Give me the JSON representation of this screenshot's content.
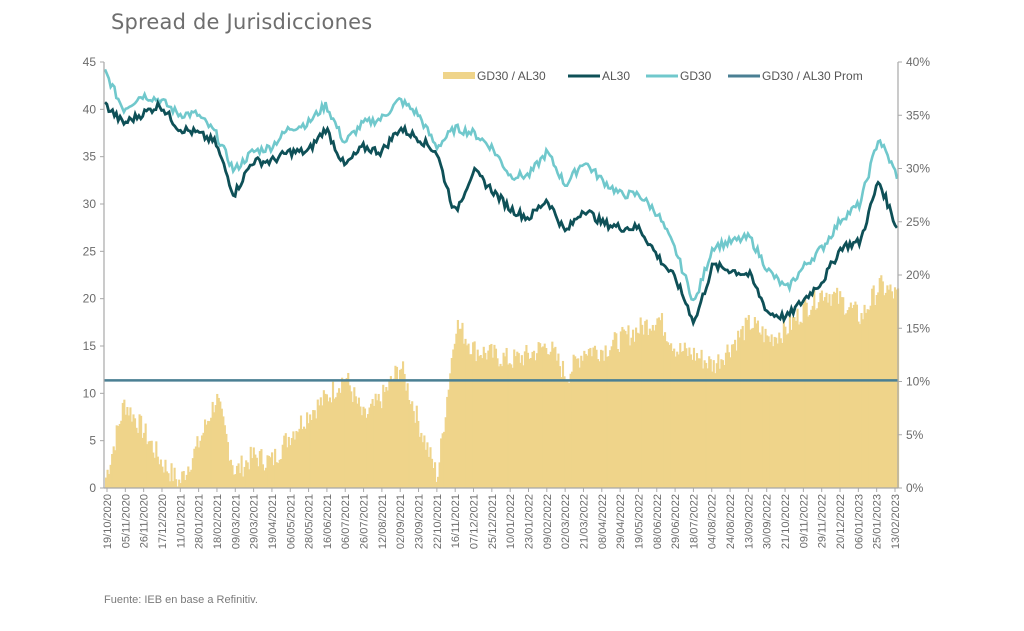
{
  "title": "Spread de Jurisdicciones",
  "source": "Fuente: IEB en base a Refinitiv.",
  "colors": {
    "gd30_al30": "#efd48a",
    "al30": "#0e5057",
    "gd30": "#70c8cc",
    "prom": "#4a7f93",
    "axis": "#a8a8a8"
  },
  "chart_data": {
    "type": "line+bar",
    "title": "Spread de Jurisdicciones",
    "xlabel": "",
    "ylabel_left": "",
    "ylabel_right": "",
    "ylim_left": [
      0,
      45
    ],
    "ylim_right": [
      0,
      40
    ],
    "left_ticks": [
      "0",
      "5",
      "10",
      "15",
      "20",
      "25",
      "30",
      "35",
      "40",
      "45"
    ],
    "right_ticks": [
      "0%",
      "5%",
      "10%",
      "15%",
      "20%",
      "25%",
      "30%",
      "35%",
      "40%"
    ],
    "legend_position": "top-right",
    "legend": [
      "GD30 / AL30",
      "AL30",
      "GD30",
      "GD30 / AL30 Prom"
    ],
    "x": [
      "19/10/2020",
      "05/11/2020",
      "26/11/2020",
      "17/12/2020",
      "11/01/2021",
      "28/01/2021",
      "18/02/2021",
      "09/03/2021",
      "29/03/2021",
      "19/04/2021",
      "06/05/2021",
      "28/05/2021",
      "16/06/2021",
      "06/07/2021",
      "26/07/2021",
      "12/08/2021",
      "02/09/2021",
      "23/09/2021",
      "22/10/2021",
      "16/11/2021",
      "07/12/2021",
      "25/12/2021",
      "10/01/2022",
      "23/01/2022",
      "09/02/2022",
      "02/03/2022",
      "21/03/2022",
      "08/04/2022",
      "29/04/2022",
      "19/05/2022",
      "08/06/2022",
      "29/06/2022",
      "18/07/2022",
      "04/08/2022",
      "24/08/2022",
      "13/09/2022",
      "30/09/2022",
      "21/10/2022",
      "09/11/2022",
      "29/11/2022",
      "20/12/2022",
      "06/01/2023",
      "25/01/2023",
      "13/02/2023"
    ],
    "series": [
      {
        "name": "GD30 / AL30",
        "type": "bar",
        "axis": "right",
        "unit": "%",
        "values": [
          1.0,
          8.0,
          5.5,
          2.5,
          0.5,
          4.0,
          8.5,
          1.5,
          3.0,
          2.5,
          5.0,
          7.0,
          8.5,
          10.5,
          6.5,
          8.5,
          11.5,
          6.0,
          1.0,
          15.5,
          13.0,
          12.5,
          12.0,
          12.5,
          13.5,
          10.5,
          13.0,
          13.0,
          14.0,
          15.0,
          16.0,
          13.0,
          12.5,
          11.5,
          13.5,
          15.5,
          14.0,
          15.0,
          17.0,
          18.5,
          17.5,
          16.0,
          19.0,
          18.0
        ]
      },
      {
        "name": "AL30",
        "type": "line",
        "axis": "left",
        "values": [
          40.5,
          38.5,
          39.5,
          40.5,
          38.0,
          37.5,
          36.5,
          31.0,
          34.5,
          34.5,
          35.5,
          35.5,
          38.0,
          34.0,
          36.0,
          35.5,
          38.0,
          37.0,
          35.5,
          29.0,
          33.5,
          31.5,
          29.5,
          28.5,
          30.5,
          27.0,
          29.5,
          28.0,
          27.5,
          27.5,
          24.5,
          22.0,
          17.5,
          23.5,
          23.0,
          22.5,
          18.5,
          18.0,
          20.0,
          22.0,
          25.5,
          26.0,
          32.5,
          27.5
        ]
      },
      {
        "name": "GD30",
        "type": "line",
        "axis": "left",
        "values": [
          44.0,
          40.0,
          41.5,
          41.0,
          39.5,
          39.5,
          37.5,
          33.5,
          35.5,
          36.0,
          38.0,
          38.5,
          40.5,
          36.5,
          38.5,
          39.0,
          41.0,
          39.5,
          36.0,
          38.0,
          37.5,
          36.0,
          33.0,
          33.0,
          35.5,
          32.0,
          34.5,
          32.5,
          31.0,
          31.0,
          29.0,
          25.0,
          19.5,
          25.5,
          26.0,
          26.5,
          23.0,
          21.0,
          23.5,
          25.5,
          28.5,
          30.0,
          37.0,
          33.0
        ]
      },
      {
        "name": "GD30 / AL30 Prom",
        "type": "line",
        "axis": "right",
        "unit": "%",
        "values_constant": 10.1
      }
    ]
  }
}
